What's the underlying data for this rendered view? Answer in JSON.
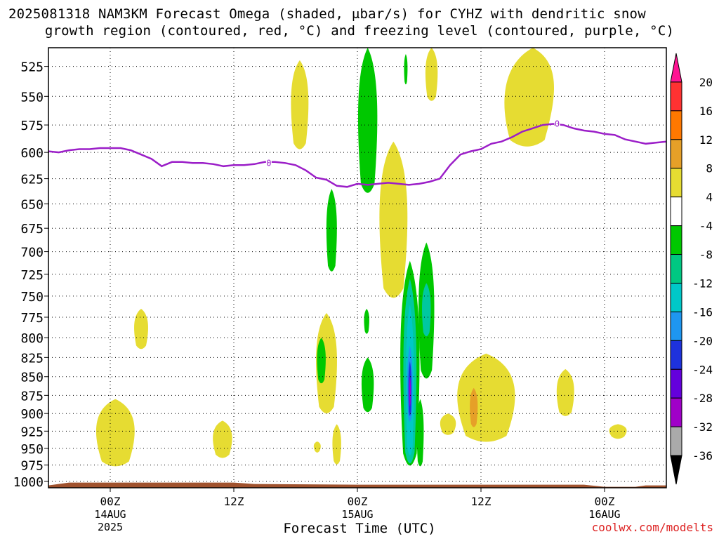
{
  "title_line1": "2025081318 NAM3KM Forecast Omega (shaded, μbar/s) for CYHZ with dendritic snow",
  "title_line2": "growth region (contoured, red, °C) and freezing level (contoured, purple, °C)",
  "xlabel": "Forecast Time (UTC)",
  "credit": "coolwx.com/modelts",
  "colors": {
    "green": "#00c800",
    "yellow": "#e6dc32",
    "orange": "#e6a028",
    "cyan": "#00c8c8",
    "teal": "#00aaaa",
    "blue": "#1e96f0",
    "navy": "#1e32dc",
    "purple": "#9600dc",
    "freezing": "#9b1ec8",
    "ground": "#a0522d"
  },
  "chart_data": {
    "type": "time-height cross section",
    "x_ticks": [
      {
        "label": "00Z",
        "sub": [
          "14AUG",
          "2025"
        ],
        "hour": 6
      },
      {
        "label": "12Z",
        "sub": [],
        "hour": 18
      },
      {
        "label": "00Z",
        "sub": [
          "15AUG"
        ],
        "hour": 30
      },
      {
        "label": "12Z",
        "sub": [],
        "hour": 42
      },
      {
        "label": "00Z",
        "sub": [
          "16AUG"
        ],
        "hour": 54
      }
    ],
    "xlim": [
      0,
      60
    ],
    "y_ticks": [
      525,
      550,
      575,
      600,
      625,
      650,
      675,
      700,
      725,
      750,
      775,
      800,
      825,
      850,
      875,
      900,
      925,
      950,
      975,
      1000
    ],
    "ylim_hpa": [
      1010,
      510
    ],
    "colorbar": {
      "labels": [
        "20",
        "16",
        "12",
        "8",
        "4",
        "-4",
        "-8",
        "-12",
        "-16",
        "-20",
        "-24",
        "-28",
        "-32",
        "-36"
      ],
      "colors": [
        "#ff1493",
        "#ff3232",
        "#ff7800",
        "#e6a028",
        "#e6dc32",
        "#ffffff",
        "#00c800",
        "#00c882",
        "#00c8c8",
        "#1e96f0",
        "#1e32dc",
        "#6400dc",
        "#a000c8",
        "#aaaaaa",
        "#000000"
      ]
    },
    "freezing_level": {
      "label": "0",
      "points": [
        [
          0,
          599
        ],
        [
          1,
          600
        ],
        [
          2,
          598
        ],
        [
          3,
          597
        ],
        [
          4,
          597
        ],
        [
          5,
          596
        ],
        [
          6,
          596
        ],
        [
          7,
          596
        ],
        [
          8,
          598
        ],
        [
          9,
          602
        ],
        [
          10,
          606
        ],
        [
          11,
          613
        ],
        [
          12,
          609
        ],
        [
          13,
          609
        ],
        [
          14,
          610
        ],
        [
          15,
          610
        ],
        [
          16,
          611
        ],
        [
          17,
          613
        ],
        [
          18,
          612
        ],
        [
          19,
          612
        ],
        [
          20,
          611
        ],
        [
          21,
          609
        ],
        [
          22,
          609
        ],
        [
          23,
          610
        ],
        [
          24,
          612
        ],
        [
          25,
          617
        ],
        [
          26,
          624
        ],
        [
          27,
          626
        ],
        [
          28,
          632
        ],
        [
          29,
          633
        ],
        [
          30,
          630
        ],
        [
          31,
          631
        ],
        [
          32,
          630
        ],
        [
          33,
          629
        ],
        [
          34,
          630
        ],
        [
          35,
          631
        ],
        [
          36,
          630
        ],
        [
          37,
          628
        ],
        [
          38,
          625
        ],
        [
          39,
          612
        ],
        [
          40,
          602
        ],
        [
          41,
          599
        ],
        [
          42,
          597
        ],
        [
          43,
          592
        ],
        [
          44,
          590
        ],
        [
          45,
          586
        ],
        [
          46,
          581
        ],
        [
          47,
          578
        ],
        [
          48,
          575
        ],
        [
          49,
          574
        ],
        [
          50,
          575
        ],
        [
          51,
          578
        ],
        [
          52,
          580
        ],
        [
          53,
          581
        ],
        [
          54,
          583
        ],
        [
          55,
          584
        ],
        [
          56,
          588
        ],
        [
          57,
          590
        ],
        [
          58,
          592
        ],
        [
          59,
          591
        ],
        [
          60,
          590
        ]
      ]
    },
    "omega_features": [
      {
        "name": "green-upper",
        "level": -6,
        "t": 31,
        "p_top": 510,
        "p_bottom": 645
      },
      {
        "name": "green-mid",
        "level": -6,
        "t": 27.5,
        "p_top": 635,
        "p_bottom": 725
      },
      {
        "name": "green-low",
        "level": -6,
        "t": 26.5,
        "p_top": 800,
        "p_bottom": 860
      },
      {
        "name": "green-column",
        "level": -6,
        "t": 36.7,
        "p_top": 690,
        "p_bottom": 975
      },
      {
        "name": "strong-upward-core",
        "level": -28,
        "t": 35.1,
        "p_top": 710,
        "p_bottom": 990
      },
      {
        "name": "yellow-upper-left",
        "level": 6,
        "t": 24.4,
        "p_top": 520,
        "p_bottom": 600
      },
      {
        "name": "yellow-top-right",
        "level": 6,
        "t": 46.8,
        "p_top": 510,
        "p_bottom": 600
      },
      {
        "name": "yellow-sfc-left",
        "level": 6,
        "t": 6.5,
        "p_top": 880,
        "p_bottom": 980
      },
      {
        "name": "yellow-sfc-right",
        "level": 6,
        "t": 42.5,
        "p_top": 820,
        "p_bottom": 945
      },
      {
        "name": "orange-cell",
        "level": 10,
        "t": 41.3,
        "p_top": 865,
        "p_bottom": 920
      }
    ],
    "ground_hpa": 1003
  }
}
